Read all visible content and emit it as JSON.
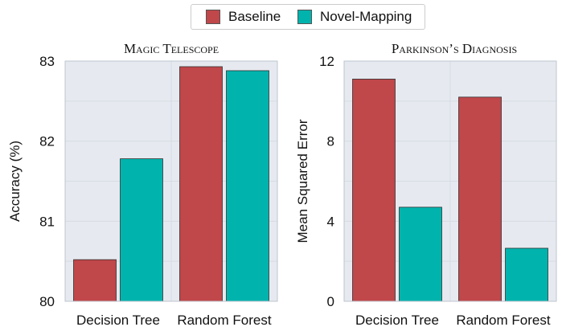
{
  "legend": {
    "items": [
      {
        "label": "Baseline",
        "color": "#c0474a"
      },
      {
        "label": "Novel-Mapping",
        "color": "#00b3ad"
      }
    ]
  },
  "chart_data": [
    {
      "type": "bar",
      "title": "Magic Telescope",
      "xlabel": "",
      "ylabel": "Accuracy (%)",
      "categories": [
        "Decision Tree",
        "Random Forest"
      ],
      "series": [
        {
          "name": "Baseline",
          "values": [
            80.52,
            82.93
          ]
        },
        {
          "name": "Novel-Mapping",
          "values": [
            81.78,
            82.88
          ]
        }
      ],
      "ylim": [
        80,
        83
      ],
      "yticks": [
        80,
        81,
        82,
        83
      ],
      "grid": true,
      "legend": "top"
    },
    {
      "type": "bar",
      "title": "Parkinson’s Diagnosis",
      "xlabel": "",
      "ylabel": "Mean Squared Error",
      "categories": [
        "Decision Tree",
        "Random Forest"
      ],
      "series": [
        {
          "name": "Baseline",
          "values": [
            11.1,
            10.2
          ]
        },
        {
          "name": "Novel-Mapping",
          "values": [
            4.7,
            2.65
          ]
        }
      ],
      "ylim": [
        0,
        12
      ],
      "yticks": [
        0,
        4,
        8,
        12
      ],
      "grid": true,
      "legend": "top"
    }
  ],
  "colors": {
    "plot_background": "#e6eaf0",
    "grid": "#d6dbe3",
    "bar_edge": "#333333"
  }
}
